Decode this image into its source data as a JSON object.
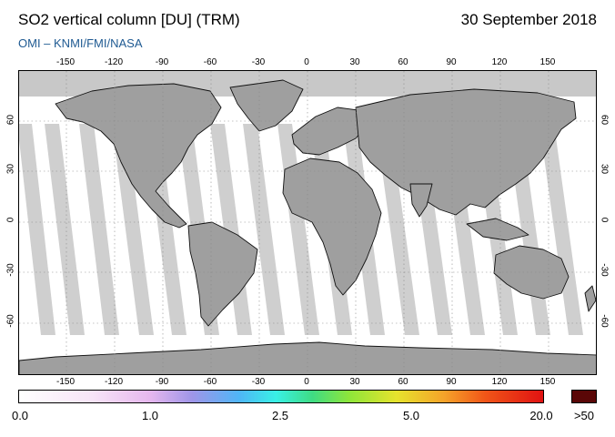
{
  "header": {
    "title": "SO2 vertical column [DU] (TRM)",
    "date": "30 September 2018",
    "credit": "OMI  –  KNMI/FMI/NASA"
  },
  "map": {
    "lon_ticks": [
      "-150",
      "-120",
      "-90",
      "-60",
      "-30",
      "0",
      "30",
      "60",
      "90",
      "120",
      "150"
    ],
    "lat_ticks": [
      "60",
      "30",
      "0",
      "-30",
      "-60"
    ],
    "colors": {
      "land_fill": "#9f9f9f",
      "swath_fill": "#cfcfcf",
      "polar_fill": "#c8c8c8",
      "background": "#ffffff"
    }
  },
  "colorbar": {
    "labels": [
      "0.0",
      "1.0",
      "2.5",
      "5.0",
      "20.0",
      ">50"
    ],
    "max_color": "#5a0707"
  }
}
